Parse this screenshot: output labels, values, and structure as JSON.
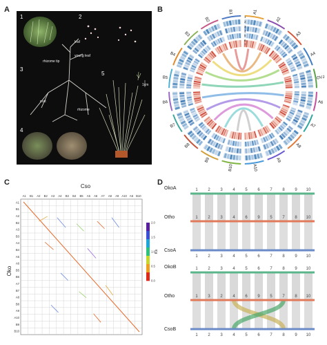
{
  "labels": {
    "a": "A",
    "b": "B",
    "c": "C",
    "d": "D"
  },
  "panel_a": {
    "nums": [
      "1",
      "2",
      "3",
      "4",
      "5"
    ],
    "words": {
      "leaf": "leaf",
      "young_leaf": "young leaf",
      "rhizome_top": "rhizome tip",
      "root": "root",
      "rhizome": "rhizome",
      "scale": "1cm"
    }
  },
  "panel_b": {
    "chroms": [
      "A1",
      "A2",
      "A3",
      "A4",
      "OVJ",
      "A6",
      "A7",
      "A8",
      "A9",
      "A10",
      "B10",
      "B9",
      "B8",
      "B7",
      "B6",
      "B5",
      "B4",
      "B3",
      "B2",
      "B1"
    ],
    "ring_nums": [
      "1",
      "2",
      "3",
      "4",
      "5",
      "6",
      "7"
    ]
  },
  "panel_c": {
    "top_title": "Cso",
    "left_title": "Oko",
    "top_ticks": [
      "A1",
      "B1",
      "A2",
      "B2",
      "A3",
      "A4",
      "B3",
      "B4",
      "B5",
      "A5",
      "A6",
      "A7",
      "A8",
      "A9",
      "A10",
      "A6",
      "B10"
    ],
    "left_ticks": [
      "A1",
      "B1",
      "A2",
      "B2",
      "A3",
      "B3",
      "A4",
      "B4",
      "A5",
      "A6",
      "B5",
      "B6",
      "A7",
      "B7",
      "A8",
      "B8",
      "A9",
      "A10",
      "B9",
      "B10"
    ],
    "colorbar": {
      "title": "Ks",
      "ticks": [
        "2.0",
        "1.5",
        "1.0",
        "0.5",
        "0.0"
      ]
    }
  },
  "panel_d": {
    "top": {
      "upper": "OkoA",
      "middle": "Otho",
      "lower": "CsoA",
      "upper_nums": [
        "1",
        "2",
        "3",
        "4",
        "5",
        "6",
        "7",
        "8",
        "9",
        "10"
      ],
      "middle_nums": [
        "1",
        "2",
        "3",
        "4",
        "6",
        "9",
        "5",
        "7",
        "8",
        "10"
      ],
      "lower_nums": [
        "1",
        "2",
        "3",
        "4",
        "5",
        "6",
        "7",
        "8",
        "9",
        "10"
      ]
    },
    "bottom": {
      "upper": "OkoB",
      "middle": "Otho",
      "lower": "CsoB",
      "upper_nums": [
        "1",
        "2",
        "3",
        "4",
        "5",
        "6",
        "7",
        "8",
        "9",
        "10"
      ],
      "middle_nums": [
        "1",
        "3",
        "2",
        "4",
        "6",
        "9",
        "5",
        "7",
        "8",
        "10"
      ],
      "lower_nums": [
        "1",
        "2",
        "3",
        "4",
        "5",
        "6",
        "7",
        "8",
        "9",
        "10"
      ]
    }
  }
}
